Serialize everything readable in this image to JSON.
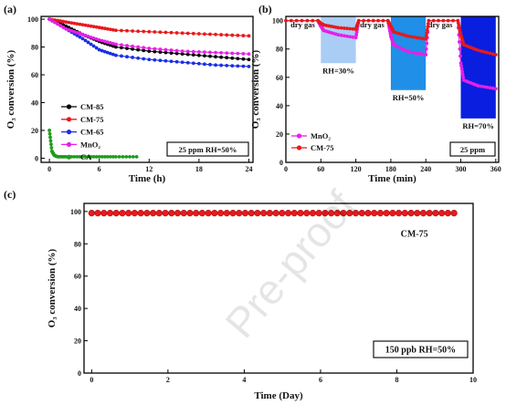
{
  "chart_data": [
    {
      "panel": "(a)",
      "type": "line",
      "xlabel": "Time (h)",
      "ylabel": "O₃ conversion (%)",
      "xlim": [
        -1,
        24.5
      ],
      "ylim": [
        -3,
        102
      ],
      "xticks": [
        0,
        6,
        12,
        18,
        24
      ],
      "yticks": [
        0,
        20,
        40,
        60,
        80,
        100
      ],
      "box_text": "25 ppm RH=50%",
      "legend_position": "left",
      "series": [
        {
          "name": "CM-85",
          "color": "#000000",
          "x": [
            0,
            2,
            4,
            6,
            8,
            12,
            16,
            20,
            24
          ],
          "y": [
            100,
            95,
            89,
            84,
            80,
            77,
            75,
            73,
            71
          ]
        },
        {
          "name": "CM-75",
          "color": "#e8191b",
          "x": [
            0,
            2,
            4,
            6,
            8,
            12,
            16,
            20,
            24
          ],
          "y": [
            100,
            98,
            96,
            94,
            92,
            91,
            90,
            89,
            88
          ]
        },
        {
          "name": "CM-65",
          "color": "#1a2ee6",
          "x": [
            0,
            2,
            4,
            6,
            8,
            12,
            16,
            20,
            24
          ],
          "y": [
            100,
            93,
            86,
            78,
            74,
            71,
            69,
            67,
            66
          ]
        },
        {
          "name": "MnO₂",
          "color": "#e81ee8",
          "x": [
            0,
            2,
            4,
            6,
            8,
            12,
            16,
            20,
            24
          ],
          "y": [
            100,
            93,
            89,
            85,
            82,
            79,
            77,
            76,
            75
          ]
        },
        {
          "name": "CA",
          "color": "#1e9c1e",
          "x": [
            0,
            0.3,
            0.6,
            1,
            2,
            4,
            6,
            8,
            10.5
          ],
          "y": [
            20,
            5,
            2,
            1,
            1,
            1,
            1,
            1,
            1
          ]
        }
      ]
    },
    {
      "panel": "(b)",
      "type": "line",
      "xlabel": "Time (min)",
      "ylabel": "O₃ conversion (%)",
      "xlim": [
        0,
        365
      ],
      "ylim": [
        0,
        103
      ],
      "xticks": [
        0,
        60,
        120,
        180,
        240,
        300,
        360
      ],
      "yticks": [
        0,
        20,
        40,
        60,
        80,
        100
      ],
      "box_text": "25 ppm",
      "legend_position": "bottom-left",
      "regions": [
        {
          "x": [
            60,
            120
          ],
          "ymin": 70,
          "label": "RH=30%",
          "color": "#a9cdf5"
        },
        {
          "x": [
            180,
            240
          ],
          "ymin": 51,
          "label": "RH=50%",
          "color": "#1f8fe8"
        },
        {
          "x": [
            300,
            360
          ],
          "ymin": 31,
          "label": "RH=70%",
          "color": "#0a1ee0"
        }
      ],
      "dry_labels": [
        "dry gas",
        "dry gas",
        "dry gas"
      ],
      "series": [
        {
          "name": "MnO₂",
          "color": "#e81ee8",
          "x": [
            0,
            55,
            60,
            65,
            90,
            120,
            125,
            175,
            180,
            185,
            210,
            240,
            245,
            295,
            300,
            305,
            330,
            360
          ],
          "y": [
            100,
            100,
            96,
            93,
            90,
            88,
            100,
            100,
            89,
            83,
            78,
            76,
            100,
            100,
            70,
            58,
            54,
            52
          ]
        },
        {
          "name": "CM-75",
          "color": "#e8191b",
          "x": [
            0,
            55,
            60,
            65,
            90,
            120,
            125,
            175,
            180,
            185,
            210,
            240,
            245,
            295,
            300,
            305,
            330,
            360
          ],
          "y": [
            100,
            100,
            98,
            97,
            95,
            94,
            100,
            100,
            96,
            92,
            89,
            87,
            100,
            100,
            90,
            83,
            79,
            76
          ]
        }
      ]
    },
    {
      "panel": "(c)",
      "type": "scatter",
      "xlabel": "Time (Day)",
      "ylabel": "O₃ conversion (%)",
      "xlim": [
        -0.2,
        10
      ],
      "ylim": [
        0,
        105
      ],
      "xticks": [
        0,
        2,
        4,
        6,
        8,
        10
      ],
      "yticks": [
        0,
        20,
        40,
        60,
        80,
        100
      ],
      "box_text": "150 ppb RH=50%",
      "series": [
        {
          "name": "CM-75",
          "color": "#e8191b",
          "x_start": 0,
          "x_end": 9.5,
          "count": 60,
          "y": 99
        }
      ]
    }
  ],
  "watermark": "Pre-proof"
}
